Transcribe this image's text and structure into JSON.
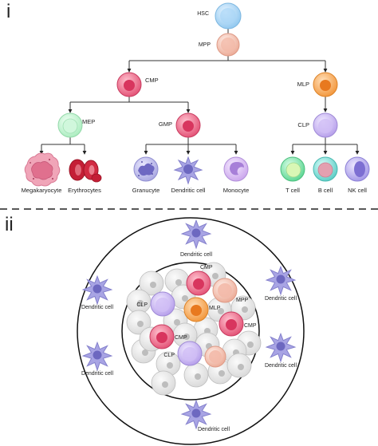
{
  "panels": {
    "top": "i",
    "bottom": "ii"
  },
  "tree": {
    "hsc": "HSC",
    "mpp": "MPP",
    "cmp": "CMP",
    "mlp": "MLP",
    "mep": "MEP",
    "gmp": "GMP",
    "clp": "CLP",
    "megakaryocyte": "Megakaryocyte",
    "erythrocytes": "Erythrocytes",
    "granulocyte": "Granucyte",
    "dendritic": "Dendritic cell",
    "monocyte": "Monocyte",
    "tcell": "T cell",
    "bcell": "B cell",
    "nkcell": "NK cell"
  },
  "niche": {
    "dendritic_top": "Dendritic cell",
    "dendritic_left_upper": "Dendritic cell",
    "dendritic_left_lower": "Dendritic cell",
    "dendritic_right_upper": "Dendritic cell",
    "dendritic_right_lower": "Dendritic cell",
    "dendritic_bottom": "Dendritic cell",
    "cmp_top": "CMP",
    "mpp": "MPP",
    "clp_upper": "CLP",
    "mlp": "MLP",
    "cmp_right": "CMP",
    "cmp_left": "CMP",
    "clp_lower": "CLP"
  },
  "colors": {
    "hsc": "#8ec6ef",
    "mpp": "#f2b8a8",
    "cmp": "#e8577a",
    "mlp": "#f5a04a",
    "mep": "#b6f0c8",
    "clp": "#c0a8ee",
    "tcell": "#7be0a6",
    "bcell": "#7fd9d3",
    "nk": "#b3a6ec",
    "dendritic": "#8f8bd6",
    "erythro": "#c82838",
    "mega": "#e07d97",
    "gran": "#b4b3e6",
    "mono": "#d7b6ef",
    "stroma": "#e4e4e4"
  }
}
